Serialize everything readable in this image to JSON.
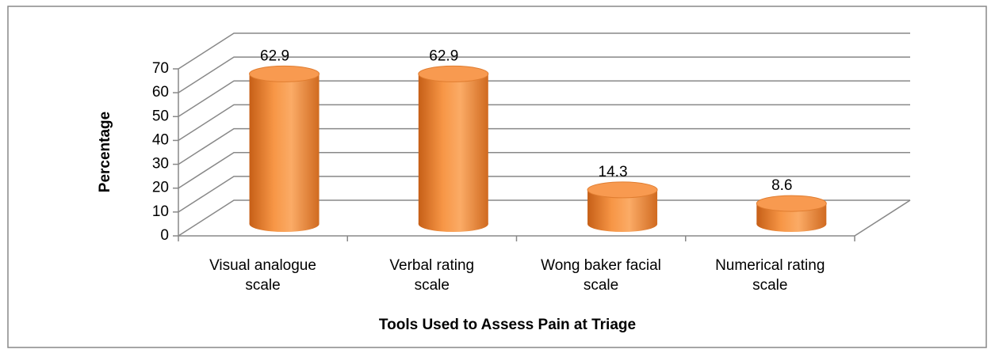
{
  "chart_data": {
    "type": "bar3d",
    "x_label": "Tools Used to Assess Pain at Triage",
    "y_label": "Percentage",
    "categories": [
      "Visual analogue\nscale",
      "Verbal rating\nscale",
      "Wong baker facial\nscale",
      "Numerical rating\nscale"
    ],
    "values": [
      62.9,
      62.9,
      14.3,
      8.6
    ],
    "color": "#f79646",
    "ylim": [
      0,
      70
    ],
    "yticks": [
      0,
      10,
      20,
      30,
      40,
      50,
      60,
      70
    ],
    "grid": true
  }
}
